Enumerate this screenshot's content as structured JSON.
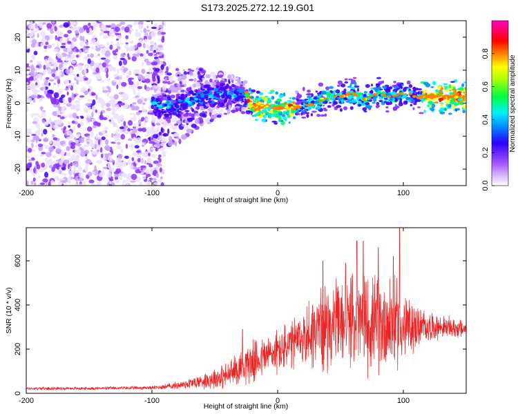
{
  "figure_title": "S173.2025.272.12.19.G01",
  "chart_data": [
    {
      "type": "heatmap",
      "title": "S173.2025.272.12.19.G01",
      "xlabel": "Height of straight line (km)",
      "ylabel": "Frequency (Hz)",
      "xlim": [
        -200,
        150
      ],
      "ylim": [
        -25,
        25
      ],
      "xticks": [
        -200,
        -100,
        0,
        100
      ],
      "yticks": [
        -20,
        -10,
        0,
        10,
        20
      ],
      "colorbar": {
        "label": "Normalized spectral amplitude",
        "range": [
          0,
          1
        ],
        "ticks": [
          "0.0",
          "0.2",
          "0.4",
          "0.6",
          "0.8"
        ],
        "tick_values": [
          0.0,
          0.2,
          0.4,
          0.6,
          0.8
        ],
        "colors": [
          "#ffffff",
          "#a060ff",
          "#3000ff",
          "#0090ff",
          "#00ffff",
          "#00ff30",
          "#ffff00",
          "#ff7000",
          "#ff0000",
          "#ff00c0"
        ]
      },
      "ridge": {
        "description_points_x": [
          -100,
          -80,
          -60,
          -40,
          -25,
          -20,
          -10,
          0,
          10,
          20,
          30,
          40,
          50,
          60,
          70,
          80,
          90,
          100,
          110,
          120,
          150
        ],
        "description_points_y": [
          0,
          -1,
          2,
          3,
          2,
          -1,
          -1,
          -1.5,
          -1.5,
          -1,
          0,
          2,
          2,
          3,
          1,
          3,
          2,
          3,
          2,
          2,
          2
        ]
      }
    },
    {
      "type": "line",
      "title": "",
      "xlabel": "Height of straight line (km)",
      "ylabel": "SNR (10 * v/v)",
      "xlim": [
        -200,
        150
      ],
      "ylim": [
        0,
        750
      ],
      "xticks": [
        -200,
        -100,
        0,
        100
      ],
      "yticks": [
        0,
        200,
        400,
        600
      ],
      "color": "#ee2222",
      "envelope": {
        "x": [
          -200,
          -150,
          -100,
          -80,
          -60,
          -50,
          -40,
          -30,
          -25,
          -20,
          -10,
          0,
          10,
          20,
          30,
          40,
          50,
          60,
          70,
          80,
          90,
          100,
          110,
          120,
          130,
          150
        ],
        "mean": [
          22,
          22,
          25,
          35,
          55,
          70,
          80,
          120,
          140,
          140,
          170,
          190,
          210,
          250,
          290,
          300,
          320,
          330,
          320,
          310,
          320,
          300,
          300,
          300,
          300,
          290
        ],
        "spread": [
          8,
          8,
          10,
          20,
          40,
          60,
          70,
          90,
          110,
          110,
          110,
          120,
          140,
          150,
          220,
          220,
          220,
          230,
          260,
          250,
          260,
          200,
          120,
          80,
          60,
          50
        ]
      },
      "spikes": [
        {
          "x": -28,
          "y": 290
        },
        {
          "x": 36,
          "y": 600
        },
        {
          "x": 54,
          "y": 590
        },
        {
          "x": 63,
          "y": 690
        },
        {
          "x": 68,
          "y": 690
        },
        {
          "x": 80,
          "y": 660
        },
        {
          "x": 97,
          "y": 750
        },
        {
          "x": 92,
          "y": 620
        }
      ]
    }
  ]
}
